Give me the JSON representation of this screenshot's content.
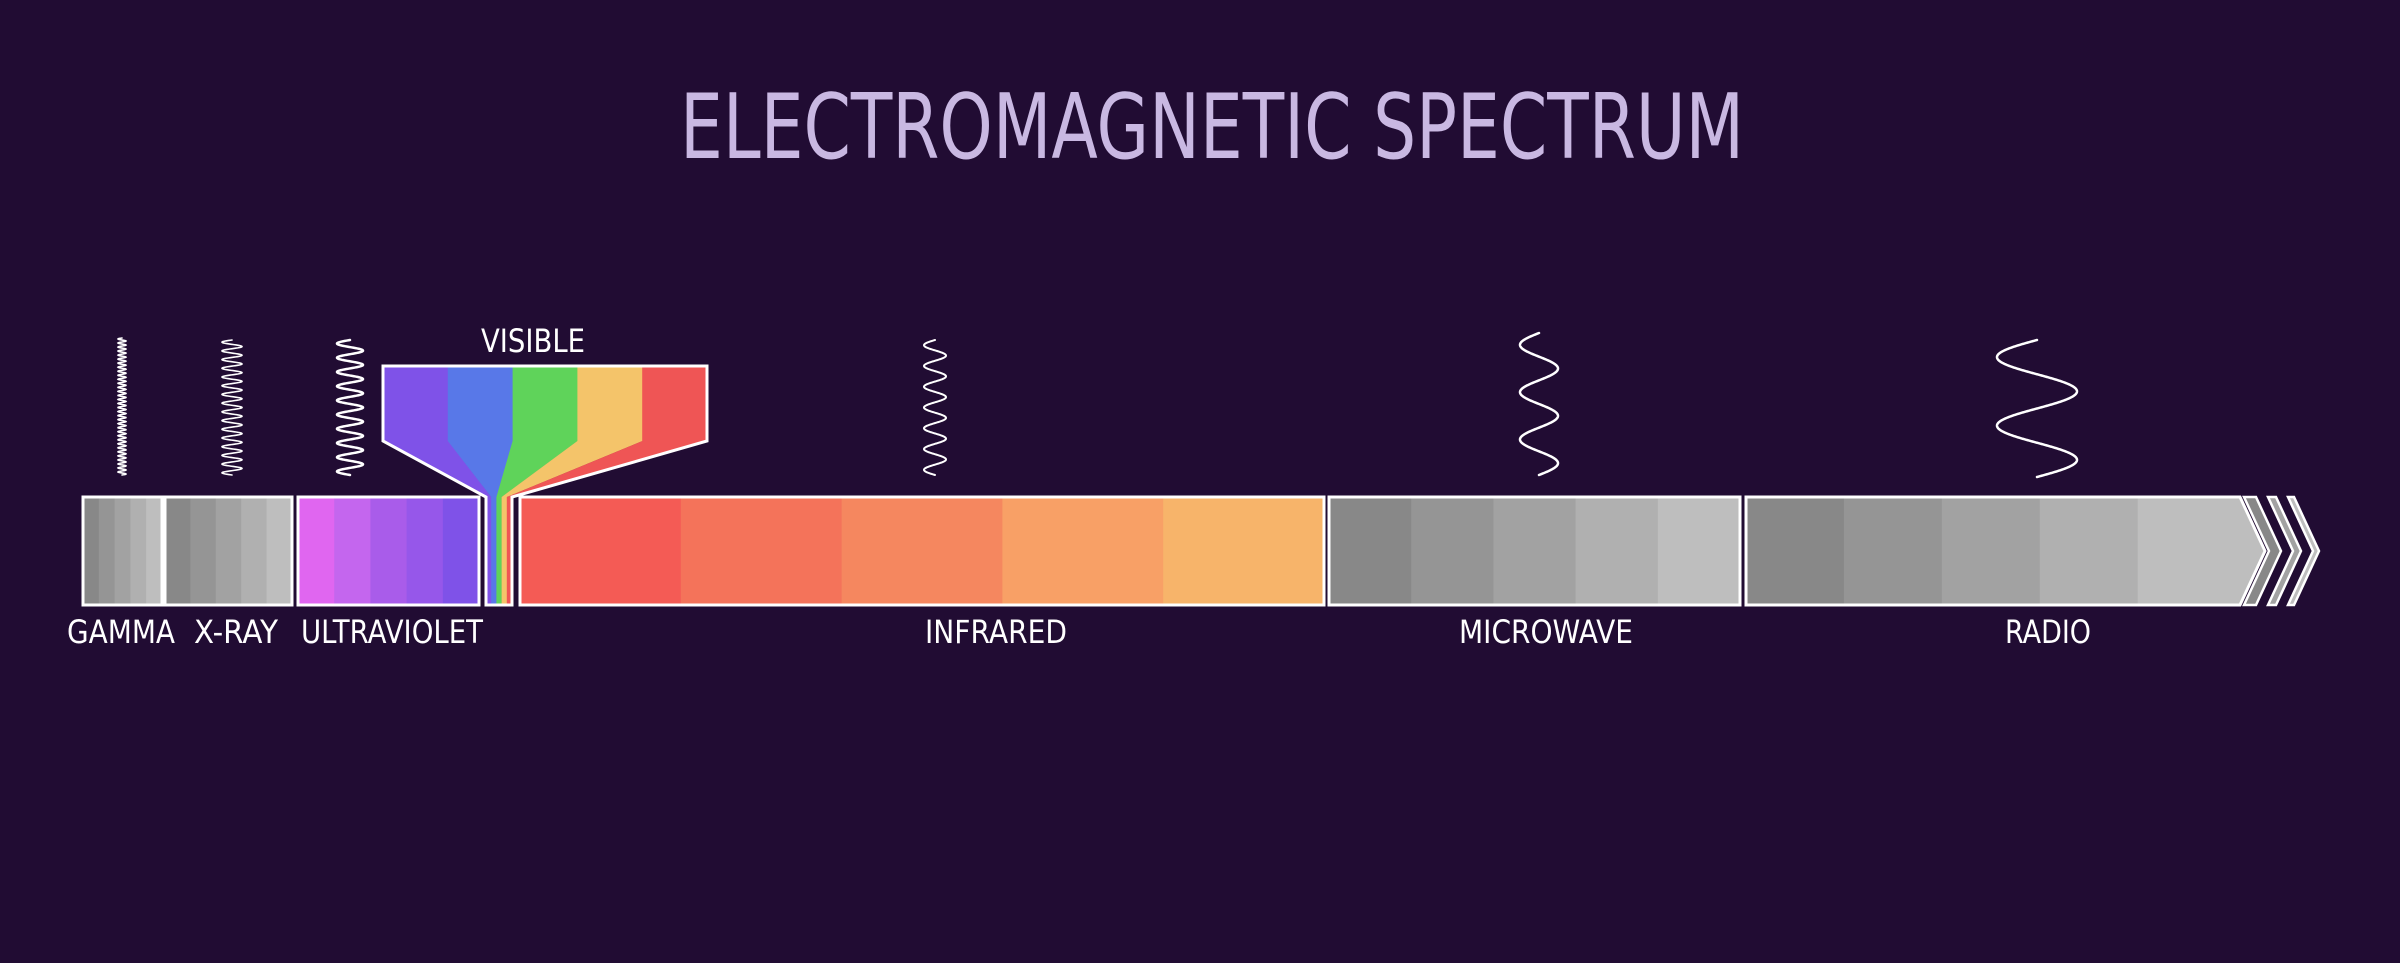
{
  "title": "ELECTROMAGNETIC SPECTRUM",
  "colors": {
    "background": "#210c33",
    "title": "#c9b8e2",
    "outline": "#ffffff"
  },
  "visible": {
    "label": "VISIBLE",
    "colors": [
      "#7f52e8",
      "#5878e8",
      "#5fd35a",
      "#f4c46a",
      "#ef5555"
    ]
  },
  "bands": [
    {
      "id": "gamma",
      "label": "GAMMA",
      "colors": [
        "#888888",
        "#959595",
        "#a2a2a2",
        "#b0b0b0",
        "#bebebe"
      ]
    },
    {
      "id": "x-ray",
      "label": "X-RAY",
      "colors": [
        "#888888",
        "#959595",
        "#a2a2a2",
        "#b0b0b0",
        "#bebebe"
      ]
    },
    {
      "id": "ultraviolet",
      "label": "ULTRAVIOLET",
      "colors": [
        "#e066f0",
        "#c466ee",
        "#a95cea",
        "#9657ea",
        "#7f52e8"
      ]
    },
    {
      "id": "infrared",
      "label": "INFRARED",
      "colors": [
        "#f45b55",
        "#f4735a",
        "#f5875f",
        "#f8a066",
        "#f7b46a"
      ]
    },
    {
      "id": "microwave",
      "label": "MICROWAVE",
      "colors": [
        "#888888",
        "#959595",
        "#a2a2a2",
        "#b0b0b0",
        "#bebebe"
      ]
    },
    {
      "id": "radio",
      "label": "RADIO",
      "colors": [
        "#888888",
        "#959595",
        "#a2a2a2",
        "#b0b0b0",
        "#bebebe"
      ]
    }
  ]
}
